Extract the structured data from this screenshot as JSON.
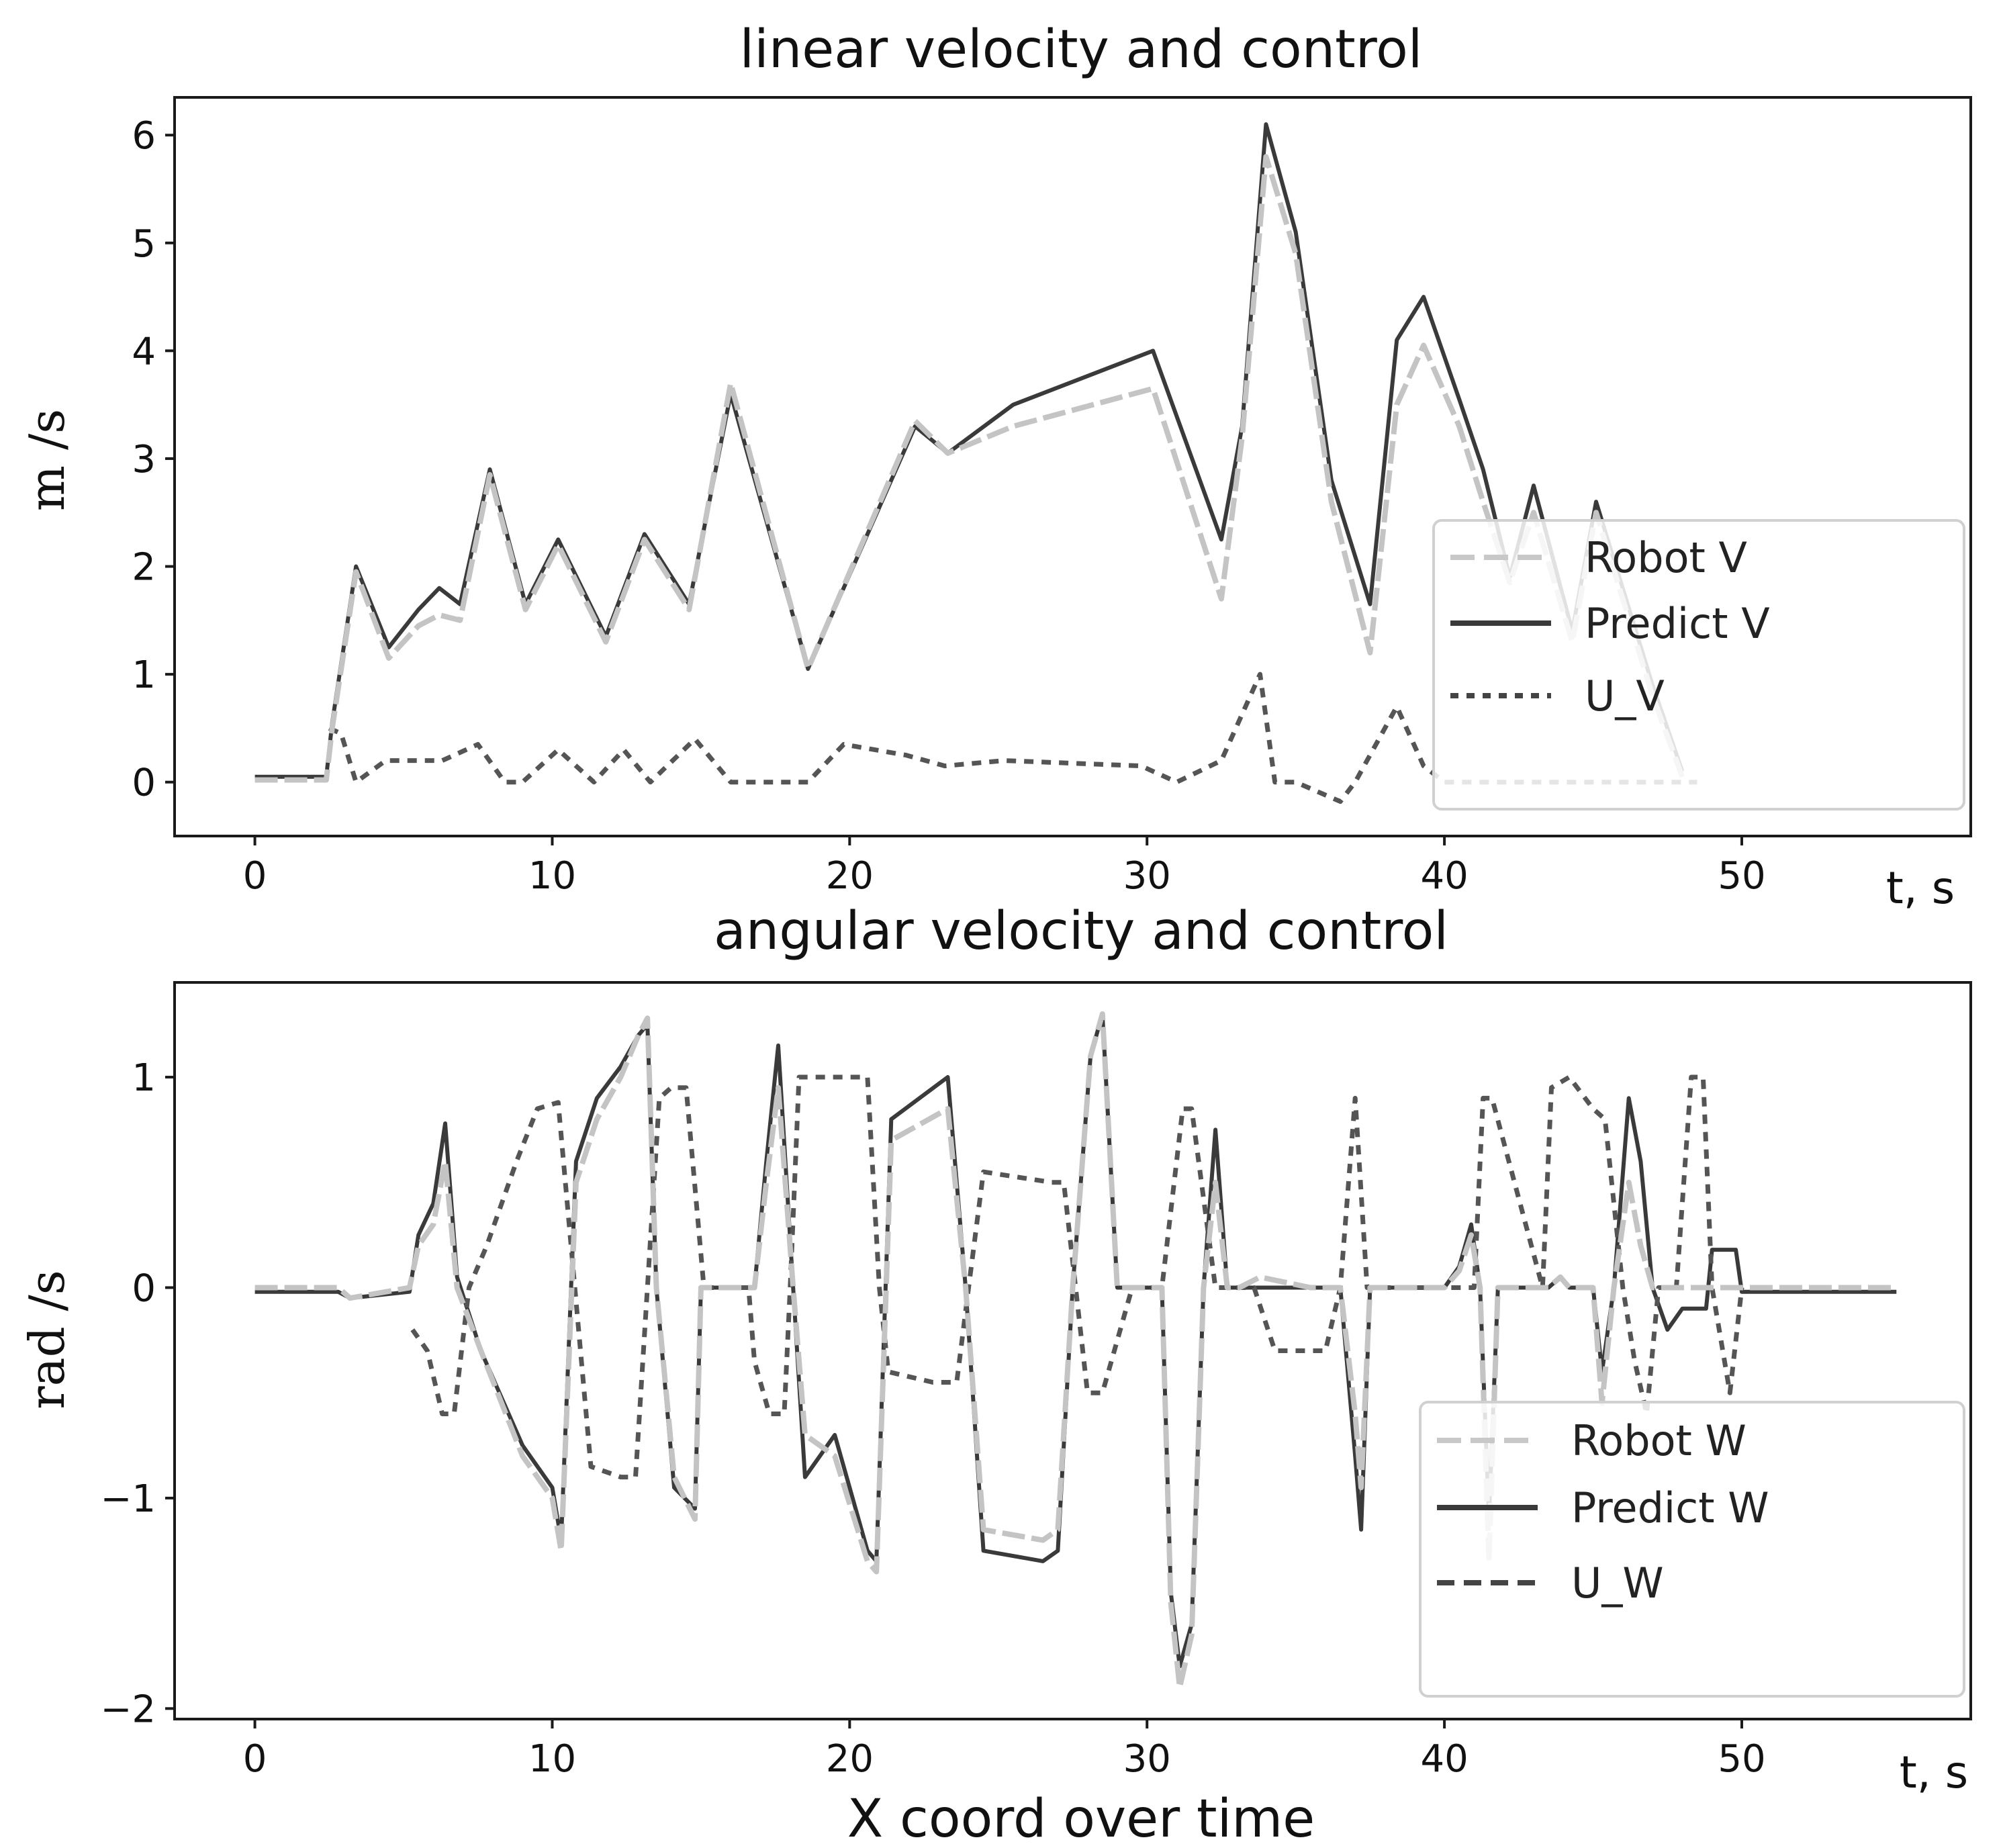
{
  "figure_caption": "X coord over time",
  "chart_data": [
    {
      "type": "line",
      "title": "linear velocity and control",
      "xlabel": "t, s",
      "ylabel": "m /s",
      "xlim": [
        -2.7,
        57.7
      ],
      "ylim": [
        -0.5,
        6.35
      ],
      "xticks": [
        0,
        10,
        20,
        30,
        40,
        50
      ],
      "yticks": [
        0,
        1,
        2,
        3,
        4,
        5,
        6
      ],
      "grid": false,
      "legend_position": "lower-right",
      "series": [
        {
          "name": "Robot V",
          "style": "dashed-light",
          "x": [
            0,
            2.4,
            2.6,
            3.4,
            4.5,
            5.5,
            6.2,
            6.9,
            7.9,
            9.1,
            10.2,
            11.8,
            13.1,
            14.6,
            16.0,
            18.6,
            22.2,
            23.3,
            25.5,
            30.2,
            32.5,
            33.2,
            34.0,
            35.0,
            36.2,
            37.5,
            38.4,
            39.3,
            40.5,
            41.3,
            42.2,
            43.0,
            44.3,
            45.1,
            47.0,
            48.0
          ],
          "y": [
            0.02,
            0.02,
            0.5,
            1.95,
            1.15,
            1.45,
            1.55,
            1.5,
            2.85,
            1.6,
            2.2,
            1.3,
            2.25,
            1.6,
            3.7,
            1.05,
            3.35,
            3.05,
            3.3,
            3.65,
            1.7,
            3.2,
            5.8,
            4.9,
            2.6,
            1.2,
            3.5,
            4.05,
            3.3,
            2.6,
            1.85,
            2.5,
            1.3,
            2.5,
            0.8,
            0.05
          ]
        },
        {
          "name": "Predict V",
          "style": "solid-dark",
          "x": [
            0,
            2.4,
            2.6,
            3.4,
            4.5,
            5.5,
            6.2,
            6.9,
            7.9,
            9.1,
            10.2,
            11.8,
            13.1,
            14.6,
            16.0,
            18.6,
            22.2,
            23.3,
            25.5,
            30.2,
            32.5,
            33.2,
            34.0,
            35.0,
            36.2,
            37.5,
            38.4,
            39.3,
            40.5,
            41.3,
            42.2,
            43.0,
            44.3,
            45.1,
            47.0,
            48.0
          ],
          "y": [
            0.05,
            0.05,
            0.55,
            2.0,
            1.25,
            1.6,
            1.8,
            1.65,
            2.9,
            1.65,
            2.25,
            1.35,
            2.3,
            1.65,
            3.6,
            1.05,
            3.3,
            3.05,
            3.5,
            4.0,
            2.25,
            3.3,
            6.1,
            5.1,
            2.8,
            1.65,
            4.1,
            4.5,
            3.55,
            2.9,
            1.9,
            2.75,
            1.4,
            2.6,
            0.9,
            0.1
          ]
        },
        {
          "name": "U_V",
          "style": "dotted-dark",
          "x": [
            2.5,
            2.9,
            3.4,
            4.4,
            6.3,
            7.5,
            8.4,
            9.0,
            10.2,
            11.4,
            12.4,
            13.3,
            14.8,
            16.0,
            18.6,
            19.8,
            21.9,
            23.2,
            25.2,
            29.8,
            31.0,
            32.5,
            33.8,
            34.3,
            35.0,
            36.5,
            37.0,
            38.4,
            39.3,
            40.0,
            48.5
          ],
          "y": [
            0.5,
            0.45,
            0.0,
            0.2,
            0.2,
            0.35,
            0.0,
            0.0,
            0.3,
            0.0,
            0.3,
            0.0,
            0.4,
            0.0,
            0.0,
            0.35,
            0.25,
            0.15,
            0.2,
            0.15,
            0.0,
            0.2,
            1.0,
            0.0,
            0.0,
            -0.18,
            0.0,
            0.7,
            0.15,
            0.0,
            0.0
          ]
        }
      ]
    },
    {
      "type": "line",
      "title": "angular velocity and control",
      "xlabel": "t, s",
      "ylabel": "rad /s",
      "xlim": [
        -2.7,
        57.7
      ],
      "ylim": [
        -2.05,
        1.45
      ],
      "xticks": [
        0,
        10,
        20,
        30,
        40,
        50
      ],
      "yticks": [
        -2,
        -1,
        0,
        1
      ],
      "ytick_labels": [
        "−2",
        "−1",
        "0",
        "1"
      ],
      "grid": false,
      "legend_position": "lower-right",
      "series": [
        {
          "name": "Robot W",
          "style": "dashed-light",
          "x": [
            0,
            2.8,
            3.2,
            5.2,
            5.5,
            6.0,
            6.4,
            6.8,
            7.6,
            9.0,
            10.0,
            10.3,
            10.8,
            11.5,
            12.3,
            12.9,
            13.2,
            13.5,
            14.1,
            14.8,
            15.0,
            15.6,
            16.8,
            17.2,
            17.6,
            18.1,
            18.5,
            19.5,
            20.6,
            20.9,
            21.4,
            23.3,
            23.9,
            24.5,
            26.5,
            27.0,
            27.5,
            28.1,
            28.5,
            29.0,
            30.5,
            30.8,
            31.1,
            31.5,
            31.9,
            32.3,
            32.7,
            33.1,
            33.8,
            35.5,
            36.5,
            37.0,
            37.2,
            37.5,
            38.0,
            40.0,
            40.5,
            40.9,
            41.2,
            41.5,
            41.8,
            42.3,
            43.5,
            43.9,
            44.2,
            44.6,
            45.0,
            45.3,
            45.7,
            46.2,
            46.6,
            47.0,
            47.5,
            48.0,
            55.2
          ],
          "y": [
            0.0,
            0.0,
            -0.05,
            0.0,
            0.2,
            0.3,
            0.6,
            0.0,
            -0.3,
            -0.8,
            -1.0,
            -1.25,
            0.5,
            0.8,
            1.0,
            1.2,
            1.28,
            0.0,
            -0.9,
            -1.1,
            0.0,
            0.0,
            0.0,
            0.5,
            0.95,
            0.0,
            -0.7,
            -0.8,
            -1.3,
            -1.35,
            0.7,
            0.85,
            0.0,
            -1.15,
            -1.2,
            -1.15,
            0.0,
            1.1,
            1.3,
            0.0,
            0.0,
            -1.5,
            -1.9,
            -1.65,
            0.0,
            0.5,
            0.0,
            0.0,
            0.05,
            0.0,
            0.0,
            -0.6,
            -0.95,
            0.0,
            0.0,
            0.0,
            0.08,
            0.25,
            0.0,
            -1.3,
            0.0,
            0.0,
            0.0,
            0.05,
            0.0,
            0.0,
            0.0,
            -0.55,
            0.0,
            0.5,
            0.2,
            0.0,
            0.0,
            0.0,
            0.0
          ]
        },
        {
          "name": "Predict W",
          "style": "solid-dark",
          "x": [
            0,
            2.8,
            3.2,
            5.2,
            5.5,
            6.0,
            6.4,
            6.8,
            7.6,
            9.0,
            10.0,
            10.3,
            10.8,
            11.5,
            12.3,
            12.9,
            13.2,
            13.5,
            14.1,
            14.8,
            15.0,
            15.6,
            16.8,
            17.2,
            17.6,
            18.1,
            18.5,
            19.5,
            20.6,
            20.9,
            21.4,
            23.3,
            23.9,
            24.5,
            26.5,
            27.0,
            27.5,
            28.1,
            28.5,
            29.0,
            30.5,
            30.8,
            31.1,
            31.5,
            31.9,
            32.3,
            32.7,
            33.1,
            33.8,
            35.5,
            36.5,
            37.0,
            37.2,
            37.5,
            38.0,
            40.0,
            40.5,
            40.9,
            41.2,
            41.5,
            41.8,
            42.3,
            43.5,
            43.9,
            44.2,
            44.6,
            45.0,
            45.3,
            45.7,
            46.2,
            46.6,
            47.0,
            47.5,
            48.0,
            48.8,
            49.0,
            49.8,
            50.0,
            55.2
          ],
          "y": [
            -0.02,
            -0.02,
            -0.05,
            -0.02,
            0.25,
            0.4,
            0.78,
            0.05,
            -0.3,
            -0.75,
            -0.95,
            -1.2,
            0.6,
            0.9,
            1.05,
            1.2,
            1.25,
            0.0,
            -0.95,
            -1.05,
            0.0,
            0.0,
            0.0,
            0.6,
            1.15,
            0.0,
            -0.9,
            -0.7,
            -1.25,
            -1.3,
            0.8,
            1.0,
            0.0,
            -1.25,
            -1.3,
            -1.25,
            0.0,
            1.1,
            1.3,
            0.0,
            0.0,
            -1.45,
            -1.8,
            -1.6,
            0.0,
            0.75,
            0.0,
            0.0,
            0.0,
            0.0,
            0.0,
            -0.8,
            -1.15,
            0.0,
            0.0,
            0.0,
            0.1,
            0.3,
            0.0,
            -1.1,
            0.0,
            0.0,
            0.0,
            0.05,
            0.0,
            0.0,
            0.0,
            -0.4,
            0.0,
            0.9,
            0.6,
            0.0,
            -0.2,
            -0.1,
            -0.1,
            0.18,
            0.18,
            -0.02,
            -0.02
          ]
        },
        {
          "name": "U_W",
          "style": "dotted-dark",
          "x": [
            5.3,
            5.8,
            6.3,
            6.7,
            7.2,
            7.8,
            8.8,
            9.5,
            10.2,
            11.3,
            12.3,
            12.8,
            13.2,
            13.6,
            14.0,
            14.5,
            15.1,
            16.6,
            16.8,
            17.3,
            17.8,
            18.0,
            18.3,
            20.6,
            21.0,
            21.3,
            22.8,
            23.6,
            24.0,
            24.5,
            26.8,
            27.2,
            27.6,
            28.0,
            28.5,
            29.5,
            30.5,
            31.2,
            31.5,
            32.3,
            33.6,
            34.3,
            36.0,
            36.5,
            37.0,
            37.4,
            38.2,
            41.0,
            41.3,
            41.6,
            43.3,
            43.6,
            44.2,
            45.0,
            45.4,
            46.0,
            46.4,
            46.8,
            47.2,
            47.8,
            48.3,
            48.7,
            49.0,
            49.6,
            50.0
          ],
          "y": [
            -0.2,
            -0.3,
            -0.6,
            -0.6,
            0.0,
            0.2,
            0.6,
            0.85,
            0.88,
            -0.85,
            -0.9,
            -0.9,
            0.0,
            0.9,
            0.95,
            0.95,
            0.0,
            0.0,
            -0.35,
            -0.6,
            -0.6,
            0.0,
            1.0,
            1.0,
            0.0,
            -0.4,
            -0.45,
            -0.45,
            0.0,
            0.55,
            0.5,
            0.5,
            0.0,
            -0.5,
            -0.5,
            0.0,
            0.0,
            0.85,
            0.85,
            0.0,
            0.0,
            -0.3,
            -0.3,
            0.0,
            0.9,
            0.0,
            0.0,
            0.0,
            0.9,
            0.9,
            0.0,
            0.95,
            1.0,
            0.85,
            0.8,
            0.0,
            -0.35,
            -0.6,
            0.0,
            0.0,
            1.0,
            1.0,
            0.0,
            -0.5,
            0.0
          ]
        }
      ]
    }
  ]
}
